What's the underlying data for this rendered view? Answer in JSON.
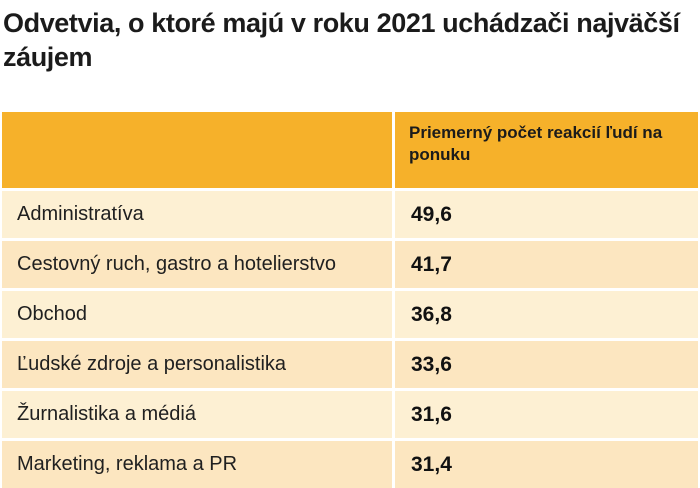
{
  "title": "Odvetvia, o ktoré majú v roku 2021 uchádzači najväčší záujem",
  "chart_data": {
    "type": "table",
    "title": "Odvetvia, o ktoré majú v roku 2021 uchádzači najväčší záujem",
    "columns": [
      "",
      "Priemerný počet reakcií ľudí na ponuku"
    ],
    "rows": [
      {
        "category": "Administratíva",
        "value": "49,6"
      },
      {
        "category": "Cestovný ruch, gastro a hotelierstvo",
        "value": "41,7"
      },
      {
        "category": "Obchod",
        "value": "36,8"
      },
      {
        "category": "Ľudské zdroje a personalistika",
        "value": "33,6"
      },
      {
        "category": "Žurnalistika a médiá",
        "value": "31,6"
      },
      {
        "category": "Marketing, reklama a PR",
        "value": "31,4"
      }
    ]
  },
  "colors": {
    "header": "#f6b12a",
    "row_light": "#fdf0d3",
    "row_alt": "#fce6c0"
  }
}
